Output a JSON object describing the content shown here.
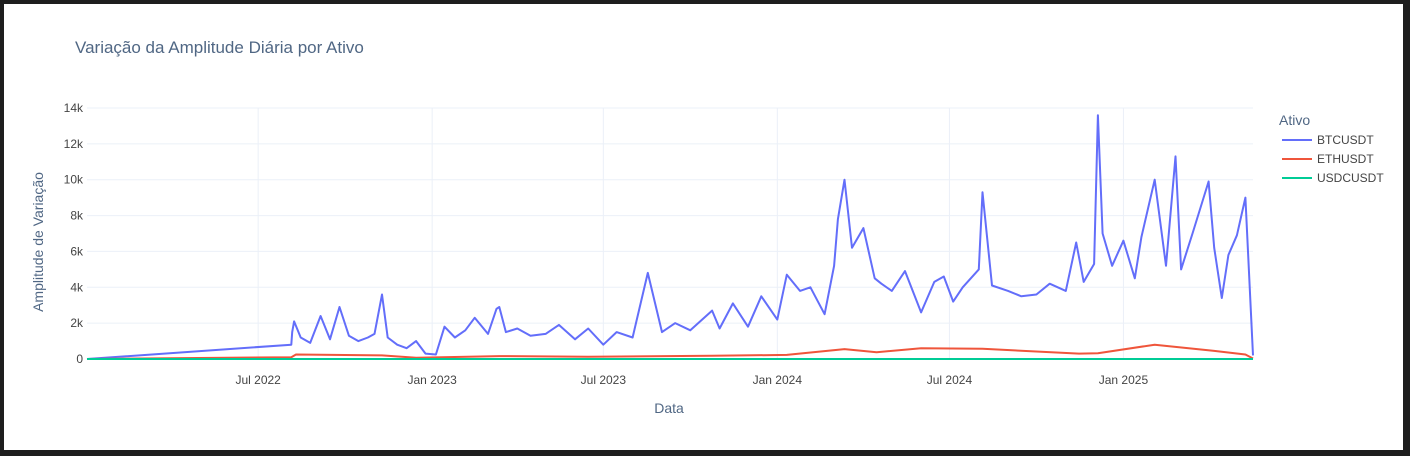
{
  "chart_data": {
    "type": "line",
    "title": "Variação da Amplitude Diária por Ativo",
    "xlabel": "Data",
    "ylabel": "Amplitude de Variação",
    "xlim": [
      "2022-01-01",
      "2025-05-18"
    ],
    "ylim": [
      0,
      14000
    ],
    "x_ticks": [
      {
        "date": "2022-07-01",
        "label": "Jul 2022"
      },
      {
        "date": "2023-01-01",
        "label": "Jan 2023"
      },
      {
        "date": "2023-07-01",
        "label": "Jul 2023"
      },
      {
        "date": "2024-01-01",
        "label": "Jan 2024"
      },
      {
        "date": "2024-07-01",
        "label": "Jul 2024"
      },
      {
        "date": "2025-01-01",
        "label": "Jan 2025"
      }
    ],
    "y_ticks": [
      {
        "value": 0,
        "label": "0"
      },
      {
        "value": 2000,
        "label": "2k"
      },
      {
        "value": 4000,
        "label": "4k"
      },
      {
        "value": 6000,
        "label": "6k"
      },
      {
        "value": 8000,
        "label": "8k"
      },
      {
        "value": 10000,
        "label": "10k"
      },
      {
        "value": 12000,
        "label": "12k"
      },
      {
        "value": 14000,
        "label": "14k"
      }
    ],
    "grid": true,
    "legend": {
      "title": "Ativo",
      "position": "right"
    },
    "series": [
      {
        "name": "BTCUSDT",
        "color": "#636efa",
        "x": [
          "2022-01-01",
          "2022-08-05",
          "2022-08-06",
          "2022-08-08",
          "2022-08-15",
          "2022-08-25",
          "2022-09-05",
          "2022-09-15",
          "2022-09-25",
          "2022-10-05",
          "2022-10-15",
          "2022-10-25",
          "2022-11-01",
          "2022-11-09",
          "2022-11-15",
          "2022-11-25",
          "2022-12-05",
          "2022-12-15",
          "2022-12-25",
          "2023-01-05",
          "2023-01-14",
          "2023-01-25",
          "2023-02-05",
          "2023-02-15",
          "2023-03-01",
          "2023-03-10",
          "2023-03-13",
          "2023-03-20",
          "2023-04-01",
          "2023-04-15",
          "2023-05-01",
          "2023-05-15",
          "2023-06-01",
          "2023-06-15",
          "2023-07-01",
          "2023-07-15",
          "2023-08-01",
          "2023-08-17",
          "2023-09-01",
          "2023-09-15",
          "2023-10-01",
          "2023-10-24",
          "2023-11-01",
          "2023-11-15",
          "2023-12-01",
          "2023-12-15",
          "2024-01-01",
          "2024-01-11",
          "2024-01-25",
          "2024-02-05",
          "2024-02-20",
          "2024-03-01",
          "2024-03-05",
          "2024-03-12",
          "2024-03-20",
          "2024-04-01",
          "2024-04-13",
          "2024-04-20",
          "2024-05-01",
          "2024-05-15",
          "2024-06-01",
          "2024-06-15",
          "2024-06-25",
          "2024-07-05",
          "2024-07-15",
          "2024-08-01",
          "2024-08-05",
          "2024-08-15",
          "2024-09-01",
          "2024-09-15",
          "2024-10-01",
          "2024-10-15",
          "2024-11-01",
          "2024-11-12",
          "2024-11-20",
          "2024-12-01",
          "2024-12-05",
          "2024-12-10",
          "2024-12-20",
          "2025-01-01",
          "2025-01-13",
          "2025-01-20",
          "2025-02-03",
          "2025-02-15",
          "2025-02-25",
          "2025-03-03",
          "2025-03-15",
          "2025-04-01",
          "2025-04-07",
          "2025-04-15",
          "2025-04-22",
          "2025-05-01",
          "2025-05-10",
          "2025-05-18"
        ],
        "y": [
          0,
          800,
          1500,
          2100,
          1200,
          900,
          2400,
          1100,
          2900,
          1300,
          1000,
          1200,
          1400,
          3600,
          1200,
          800,
          600,
          1000,
          300,
          250,
          1800,
          1200,
          1600,
          2300,
          1400,
          2800,
          2900,
          1500,
          1700,
          1300,
          1400,
          1900,
          1100,
          1700,
          800,
          1500,
          1200,
          4800,
          1500,
          2000,
          1600,
          2700,
          1700,
          3100,
          1800,
          3500,
          2200,
          4700,
          3800,
          4000,
          2500,
          5200,
          7800,
          10000,
          6200,
          7300,
          4500,
          4200,
          3800,
          4900,
          2600,
          4300,
          4600,
          3200,
          4000,
          5000,
          9300,
          4100,
          3800,
          3500,
          3600,
          4200,
          3800,
          6500,
          4300,
          5300,
          13600,
          7000,
          5200,
          6600,
          4500,
          6800,
          10000,
          5200,
          11300,
          5000,
          7000,
          9900,
          6200,
          3400,
          5800,
          6900,
          9000,
          200
        ]
      },
      {
        "name": "ETHUSDT",
        "color": "#ef553b",
        "x": [
          "2022-01-01",
          "2022-08-05",
          "2022-08-10",
          "2022-11-09",
          "2022-12-15",
          "2023-03-13",
          "2023-06-15",
          "2023-10-24",
          "2024-01-11",
          "2024-03-12",
          "2024-04-15",
          "2024-06-01",
          "2024-08-05",
          "2024-11-15",
          "2024-12-05",
          "2025-02-03",
          "2025-04-07",
          "2025-05-10",
          "2025-05-18"
        ],
        "y": [
          0,
          100,
          250,
          200,
          70,
          160,
          120,
          180,
          230,
          550,
          380,
          600,
          570,
          300,
          320,
          800,
          450,
          250,
          30
        ]
      },
      {
        "name": "USDCUSDT",
        "color": "#00cc96",
        "x": [
          "2022-01-01",
          "2025-05-18"
        ],
        "y": [
          0,
          0
        ]
      }
    ]
  }
}
